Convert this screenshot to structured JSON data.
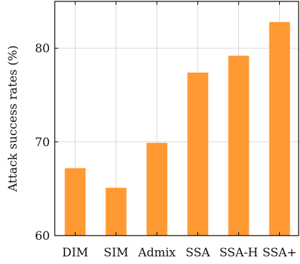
{
  "chart_data": {
    "type": "bar",
    "categories": [
      "DIM",
      "SIM",
      "Admix",
      "SSA",
      "SSA-H",
      "SSA+"
    ],
    "values": [
      67.2,
      65.1,
      69.9,
      77.4,
      79.2,
      82.8
    ],
    "title": "",
    "xlabel": "",
    "ylabel": "Attack success rates (%)",
    "ylim": [
      60,
      85
    ],
    "yticks": [
      60,
      70,
      80
    ],
    "grid": true,
    "bar_color": "#ff9933"
  }
}
